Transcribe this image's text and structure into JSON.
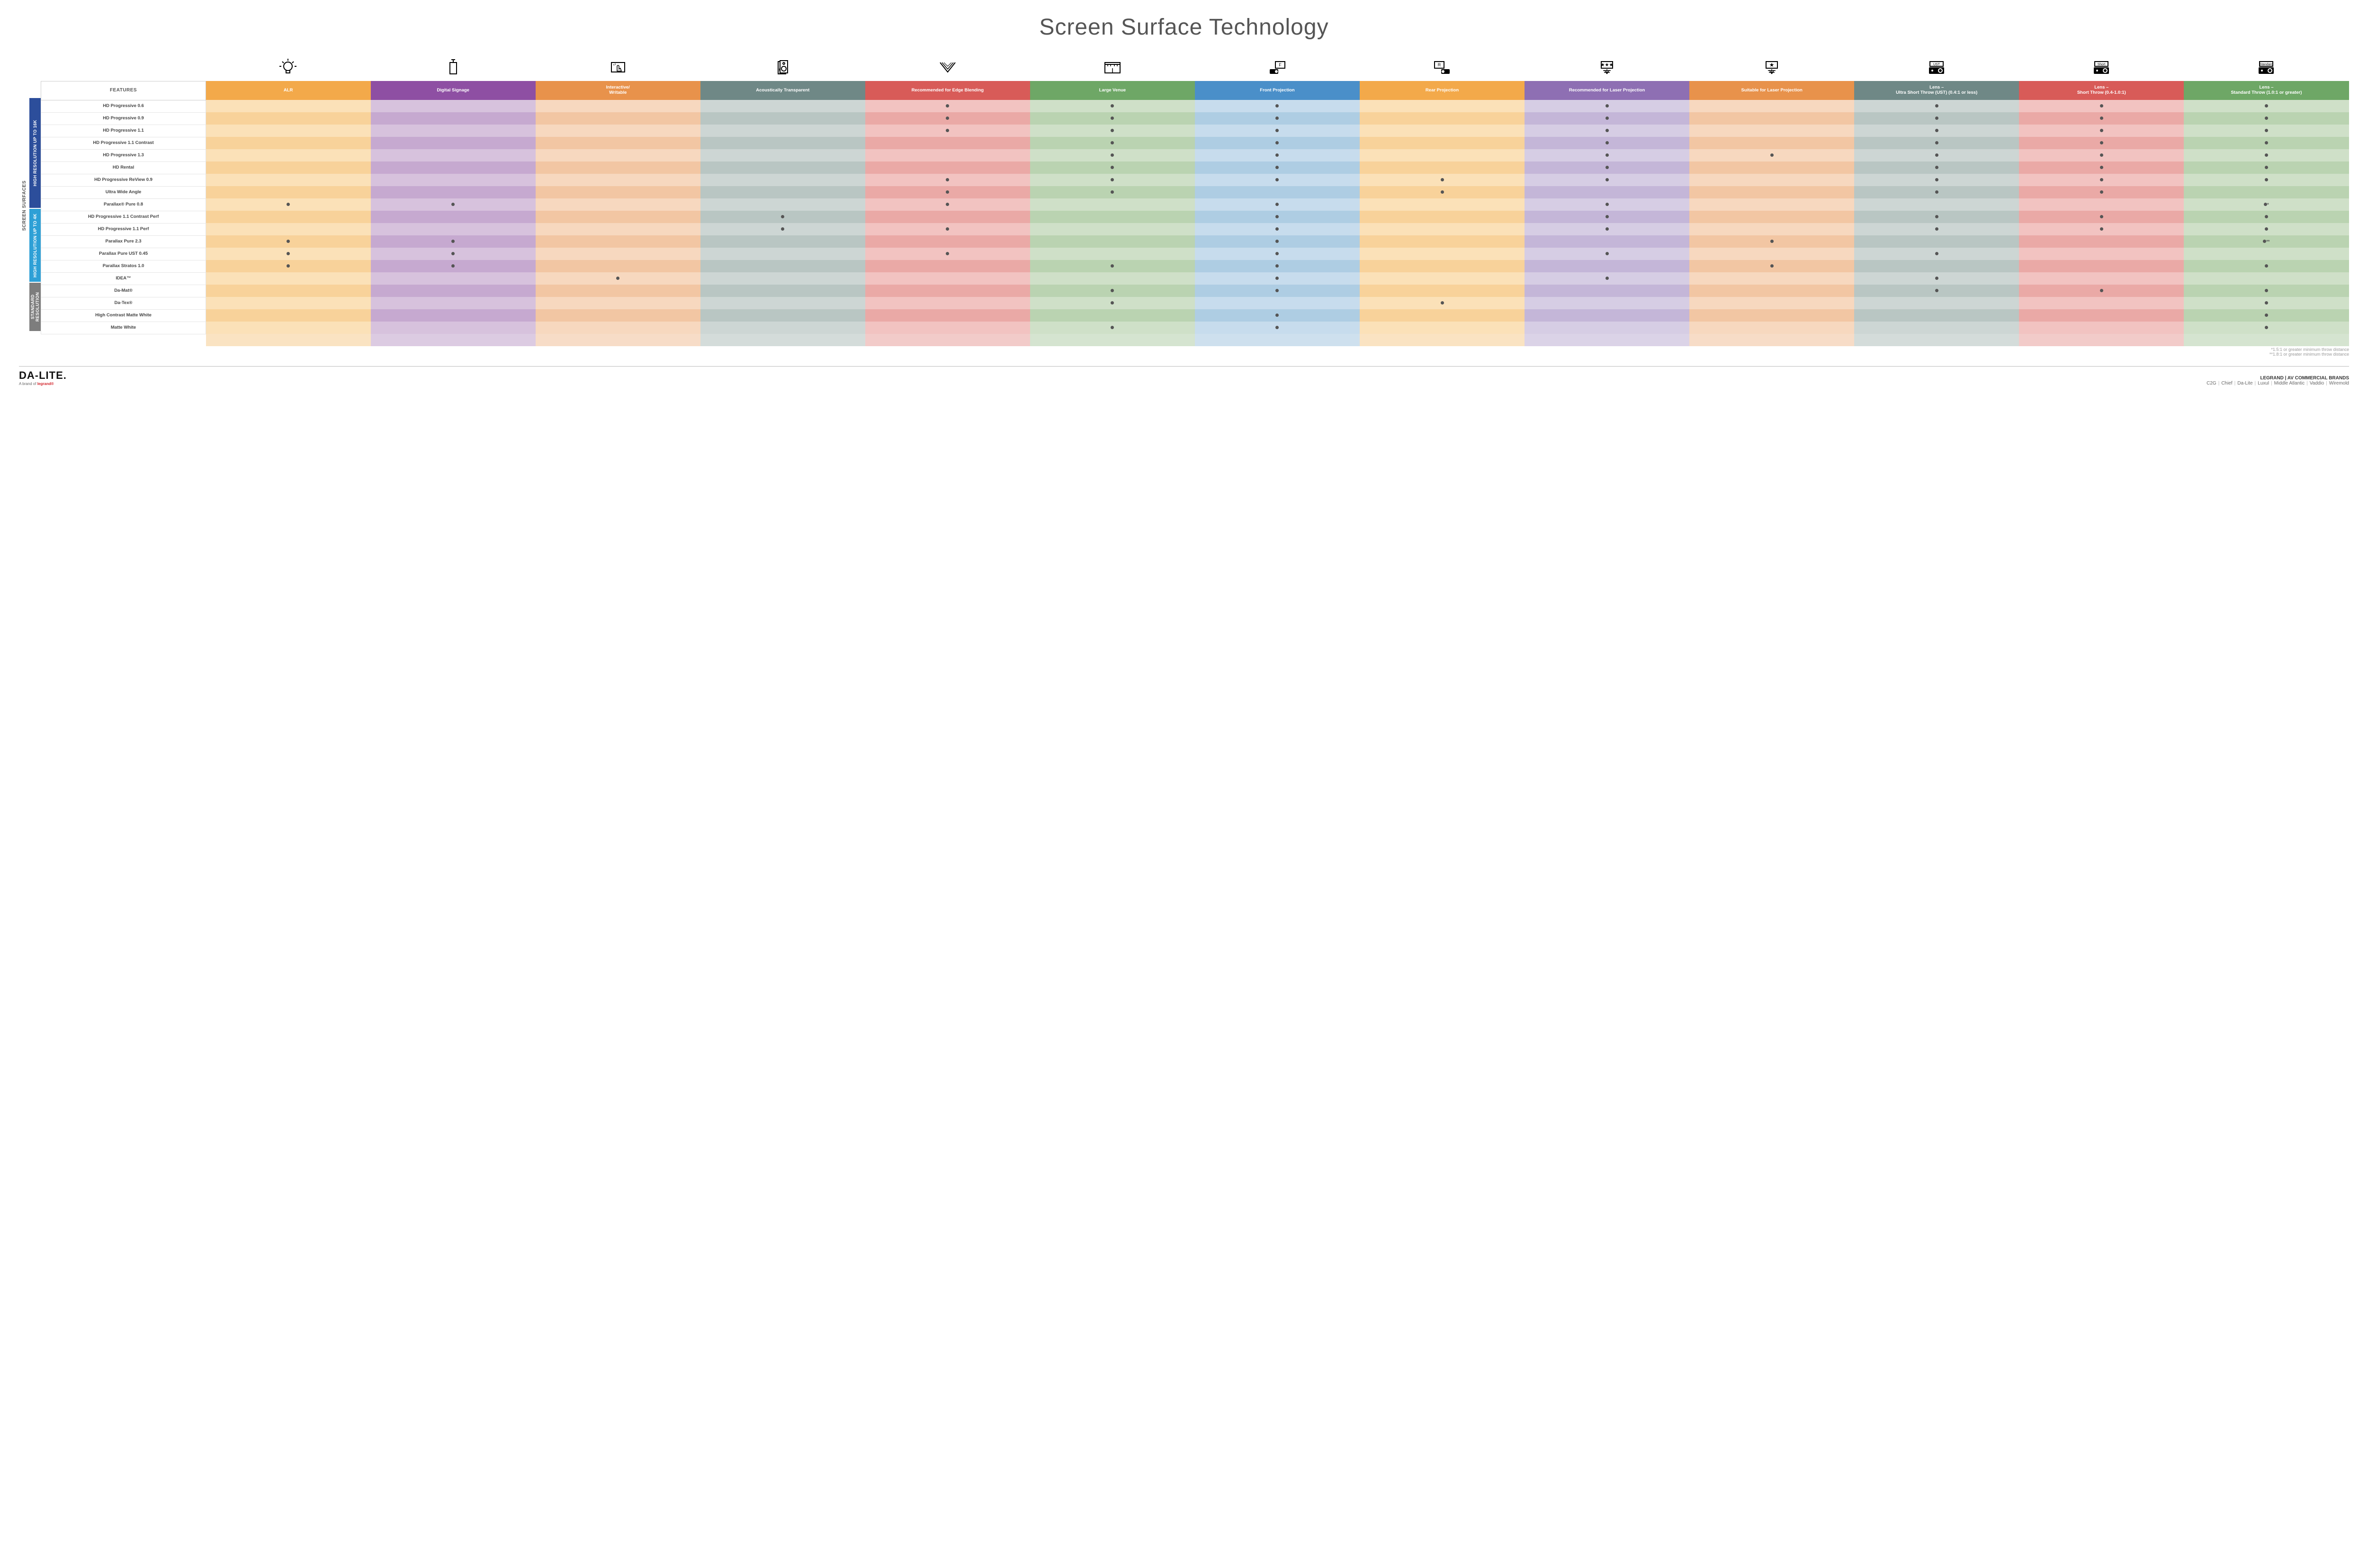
{
  "title": "Screen Surface Technology",
  "outer_label": "SCREEN SURFACES",
  "columns": [
    {
      "key": "alr",
      "label": "ALR",
      "color": "#f3a94a",
      "icon": "bulb"
    },
    {
      "key": "signage",
      "label": "Digital Signage",
      "color": "#8e4fa3",
      "icon": "signage"
    },
    {
      "key": "interactive",
      "label": "Interactive/ Writable",
      "color": "#e8924b",
      "icon": "touch"
    },
    {
      "key": "acoustic",
      "label": "Acoustically Transparent",
      "color": "#6f8886",
      "icon": "speaker"
    },
    {
      "key": "edge",
      "label": "Recommended for Edge Blending",
      "color": "#d85b58",
      "icon": "blend"
    },
    {
      "key": "large",
      "label": "Large Venue",
      "color": "#6ea766",
      "icon": "venue"
    },
    {
      "key": "front",
      "label": "Front Projection",
      "color": "#4a8fc9",
      "icon": "front"
    },
    {
      "key": "rear",
      "label": "Rear Projection",
      "color": "#f3a94a",
      "icon": "rear"
    },
    {
      "key": "reclaser",
      "label": "Recommended for Laser Projection",
      "color": "#8e6fb3",
      "icon": "laser3"
    },
    {
      "key": "suitlaser",
      "label": "Suitable for Laser Projection",
      "color": "#e8924b",
      "icon": "laser1"
    },
    {
      "key": "ust",
      "label": "Lens – Ultra Short Throw (UST) (0.4:1 or less)",
      "color": "#6f8886",
      "icon": "proj-ust"
    },
    {
      "key": "short",
      "label": "Lens – Short Throw (0.4-1.0:1)",
      "color": "#d85b58",
      "icon": "proj-short"
    },
    {
      "key": "std",
      "label": "Lens – Standard Throw (1.0:1 or greater)",
      "color": "#6ea766",
      "icon": "proj-std"
    }
  ],
  "tints": {
    "alr": [
      "#fbe1b8",
      "#f8d29a"
    ],
    "signage": [
      "#d7c2dd",
      "#c6a9d0"
    ],
    "interactive": [
      "#f7d8bf",
      "#f2c6a3"
    ],
    "acoustic": [
      "#cdd6d4",
      "#b9c6c3"
    ],
    "edge": [
      "#f2c3c1",
      "#eaa9a6"
    ],
    "large": [
      "#cfe0c8",
      "#bad3b1"
    ],
    "front": [
      "#c7dced",
      "#aecde3"
    ],
    "rear": [
      "#fbe1b8",
      "#f8d29a"
    ],
    "reclaser": [
      "#d6cde4",
      "#c4b6d8"
    ],
    "suitlaser": [
      "#f7d8bf",
      "#f2c6a3"
    ],
    "ust": [
      "#cdd6d4",
      "#b9c6c3"
    ],
    "short": [
      "#f2c3c1",
      "#eaa9a6"
    ],
    "std": [
      "#cfe0c8",
      "#bad3b1"
    ]
  },
  "groups": [
    {
      "label": "HIGH RESOLUTION UP TO 16K",
      "color": "#2c4e9b",
      "rows": 9
    },
    {
      "label": "HIGH RESOLUTION UP TO 4K",
      "color": "#2ea0d6",
      "rows": 6
    },
    {
      "label": "STANDARD RESOLUTION",
      "color": "#7d7d7d",
      "rows": 4
    }
  ],
  "rows": [
    {
      "label": "HD Progressive 0.6",
      "dots": {
        "edge": "•",
        "large": "•",
        "front": "•",
        "reclaser": "•",
        "ust": "•",
        "short": "•",
        "std": "•"
      }
    },
    {
      "label": "HD Progressive 0.9",
      "dots": {
        "edge": "•",
        "large": "•",
        "front": "•",
        "reclaser": "•",
        "ust": "•",
        "short": "•",
        "std": "•"
      }
    },
    {
      "label": "HD Progressive 1.1",
      "dots": {
        "edge": "•",
        "large": "•",
        "front": "•",
        "reclaser": "•",
        "ust": "•",
        "short": "•",
        "std": "•"
      }
    },
    {
      "label": "HD Progressive 1.1 Contrast",
      "dots": {
        "large": "•",
        "front": "•",
        "reclaser": "•",
        "ust": "•",
        "short": "•",
        "std": "•"
      }
    },
    {
      "label": "HD Progressive 1.3",
      "dots": {
        "large": "•",
        "front": "•",
        "reclaser": "•",
        "suitlaser": "•",
        "ust": "•",
        "short": "•",
        "std": "•"
      }
    },
    {
      "label": "HD Rental",
      "dots": {
        "large": "•",
        "front": "•",
        "reclaser": "•",
        "ust": "•",
        "short": "•",
        "std": "•"
      }
    },
    {
      "label": "HD Progressive ReView 0.9",
      "dots": {
        "edge": "•",
        "large": "•",
        "front": "•",
        "rear": "•",
        "reclaser": "•",
        "ust": "•",
        "short": "•",
        "std": "•"
      }
    },
    {
      "label": "Ultra Wide Angle",
      "dots": {
        "edge": "•",
        "large": "•",
        "rear": "•",
        "ust": "•",
        "short": "•"
      }
    },
    {
      "label": "Parallax® Pure 0.8",
      "dots": {
        "alr": "•",
        "signage": "•",
        "edge": "•",
        "front": "•",
        "reclaser": "•",
        "std": "•*"
      }
    },
    {
      "label": "HD Progressive 1.1 Contrast Perf",
      "dots": {
        "acoustic": "•",
        "front": "•",
        "reclaser": "•",
        "ust": "•",
        "short": "•",
        "std": "•"
      }
    },
    {
      "label": "HD Progressive 1.1 Perf",
      "dots": {
        "acoustic": "•",
        "edge": "•",
        "front": "•",
        "reclaser": "•",
        "ust": "•",
        "short": "•",
        "std": "•"
      }
    },
    {
      "label": "Parallax Pure 2.3",
      "dots": {
        "alr": "•",
        "signage": "•",
        "front": "•",
        "suitlaser": "•",
        "std": "•**"
      }
    },
    {
      "label": "Parallax Pure UST 0.45",
      "dots": {
        "alr": "•",
        "signage": "•",
        "edge": "•",
        "front": "•",
        "reclaser": "•",
        "ust": "•"
      }
    },
    {
      "label": "Parallax Stratos 1.0",
      "dots": {
        "alr": "•",
        "signage": "•",
        "large": "•",
        "front": "•",
        "suitlaser": "•",
        "std": "•"
      }
    },
    {
      "label": "IDEA™",
      "dots": {
        "interactive": "•",
        "front": "•",
        "reclaser": "•",
        "ust": "•"
      }
    },
    {
      "label": "Da-Mat®",
      "dots": {
        "large": "•",
        "front": "•",
        "ust": "•",
        "short": "•",
        "std": "•"
      }
    },
    {
      "label": "Da-Tex®",
      "dots": {
        "large": "•",
        "rear": "•",
        "std": "•"
      }
    },
    {
      "label": "High Contrast Matte White",
      "dots": {
        "front": "•",
        "std": "•"
      }
    },
    {
      "label": "Matte White",
      "dots": {
        "large": "•",
        "front": "•",
        "std": "•"
      }
    }
  ],
  "features_header": "FEATURES",
  "footnotes": [
    "*1.5:1 or greater minimum throw distance",
    "**1.8:1 or greater minimum throw distance"
  ],
  "footer": {
    "logo": "DA-LITE.",
    "logo_sub_prefix": "A brand of ",
    "logo_sub_brand": "legrand®",
    "brands_title": "LEGRAND | AV COMMERCIAL BRANDS",
    "brands": [
      "C2G",
      "Chief",
      "Da-Lite",
      "Luxul",
      "Middle Atlantic",
      "Vaddio",
      "Wiremold"
    ]
  }
}
